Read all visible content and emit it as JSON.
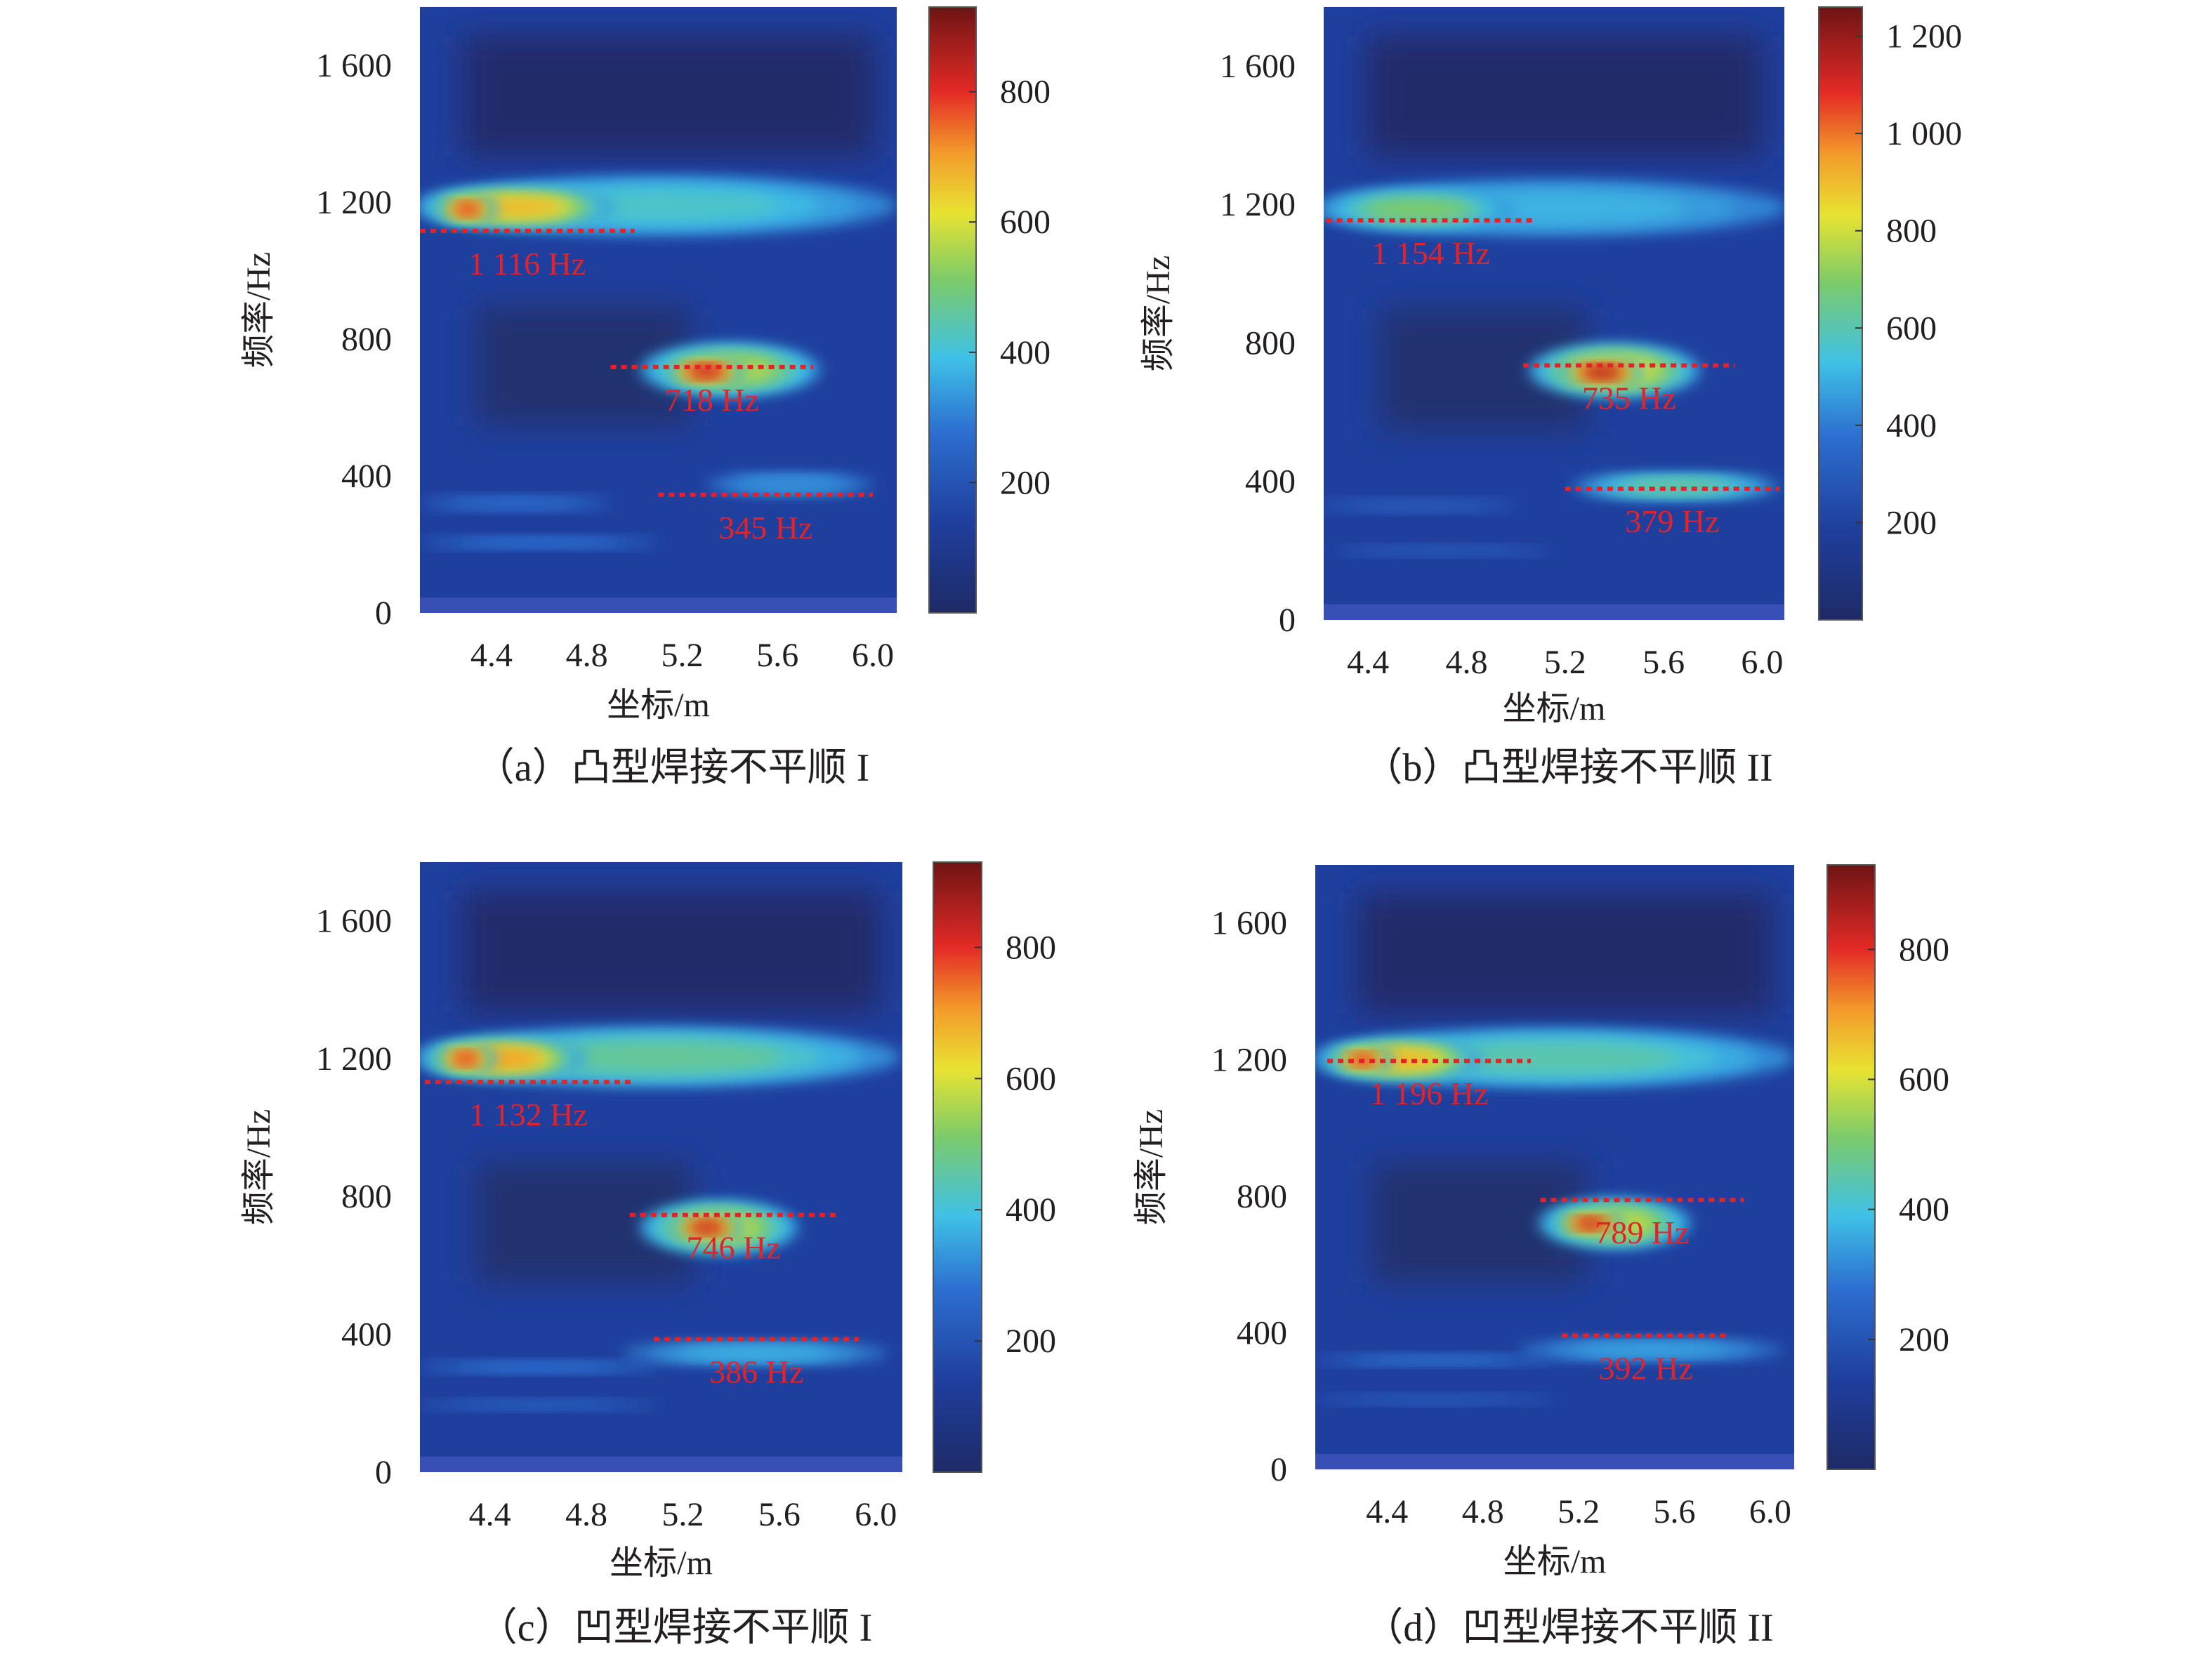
{
  "chart_data": [
    {
      "type": "heatmap",
      "panel": "a",
      "caption": "（a）凸型焊接不平顺 I",
      "xlabel": "坐标/m",
      "ylabel": "频率/Hz",
      "xticks": [
        "4.4",
        "4.8",
        "5.2",
        "5.6",
        "6.0"
      ],
      "xtick_values": [
        4.4,
        4.8,
        5.2,
        5.6,
        6.0
      ],
      "yticks": [
        "0",
        "400",
        "800",
        "1 200",
        "1 600"
      ],
      "ytick_values": [
        0,
        400,
        800,
        1200,
        1600
      ],
      "xlim": [
        4.1,
        6.1
      ],
      "ylim": [
        0,
        1770
      ],
      "colorbar": {
        "ticks": [
          "200",
          "400",
          "600",
          "800"
        ],
        "tick_values": [
          200,
          400,
          600,
          800
        ],
        "range": [
          0,
          930
        ]
      },
      "peaks": [
        {
          "label": "1 116 Hz",
          "freq": 1116,
          "x_range": [
            4.1,
            5.0
          ]
        },
        {
          "label": "718 Hz",
          "freq": 718,
          "x_range": [
            4.9,
            5.75
          ]
        },
        {
          "label": "345 Hz",
          "freq": 345,
          "x_range": [
            5.1,
            6.0
          ]
        }
      ],
      "hotspots": [
        {
          "x": 5.1,
          "y": 1190,
          "sx": 1.0,
          "sy": 85,
          "level": 0.45
        },
        {
          "x": 4.5,
          "y": 1185,
          "sx": 0.42,
          "sy": 55,
          "level": 0.72
        },
        {
          "x": 4.3,
          "y": 1180,
          "sx": 0.12,
          "sy": 35,
          "level": 0.85
        },
        {
          "x": 5.4,
          "y": 710,
          "sx": 0.38,
          "sy": 75,
          "level": 0.6
        },
        {
          "x": 5.3,
          "y": 705,
          "sx": 0.16,
          "sy": 35,
          "level": 0.9
        },
        {
          "x": 5.65,
          "y": 375,
          "sx": 0.35,
          "sy": 30,
          "level": 0.35
        },
        {
          "x": 4.5,
          "y": 320,
          "sx": 0.4,
          "sy": 18,
          "level": 0.28
        },
        {
          "x": 4.6,
          "y": 205,
          "sx": 0.5,
          "sy": 15,
          "level": 0.3
        }
      ]
    },
    {
      "type": "heatmap",
      "panel": "b",
      "caption": "（b）凸型焊接不平顺 II",
      "xlabel": "坐标/m",
      "ylabel": "频率/Hz",
      "xticks": [
        "4.4",
        "4.8",
        "5.2",
        "5.6",
        "6.0"
      ],
      "xtick_values": [
        4.4,
        4.8,
        5.2,
        5.6,
        6.0
      ],
      "yticks": [
        "0",
        "400",
        "800",
        "1 200",
        "1 600"
      ],
      "ytick_values": [
        0,
        400,
        800,
        1200,
        1600
      ],
      "xlim": [
        4.22,
        6.09
      ],
      "ylim": [
        0,
        1770
      ],
      "colorbar": {
        "ticks": [
          "200",
          "400",
          "600",
          "800",
          "1 000",
          "1 200"
        ],
        "tick_values": [
          200,
          400,
          600,
          800,
          1000,
          1200
        ],
        "range": [
          0,
          1260
        ]
      },
      "peaks": [
        {
          "label": "1 154 Hz",
          "freq": 1154,
          "x_range": [
            4.23,
            5.08
          ]
        },
        {
          "label": "735 Hz",
          "freq": 735,
          "x_range": [
            5.03,
            5.89
          ]
        },
        {
          "label": "379 Hz",
          "freq": 379,
          "x_range": [
            5.2,
            6.07
          ]
        }
      ],
      "hotspots": [
        {
          "x": 5.15,
          "y": 1190,
          "sx": 0.95,
          "sy": 80,
          "level": 0.4
        },
        {
          "x": 4.6,
          "y": 1185,
          "sx": 0.4,
          "sy": 55,
          "level": 0.55
        },
        {
          "x": 5.4,
          "y": 720,
          "sx": 0.35,
          "sy": 75,
          "level": 0.65
        },
        {
          "x": 5.35,
          "y": 715,
          "sx": 0.17,
          "sy": 35,
          "level": 0.92
        },
        {
          "x": 5.65,
          "y": 385,
          "sx": 0.42,
          "sy": 35,
          "level": 0.5
        },
        {
          "x": 4.6,
          "y": 330,
          "sx": 0.4,
          "sy": 15,
          "level": 0.22
        },
        {
          "x": 4.7,
          "y": 200,
          "sx": 0.45,
          "sy": 12,
          "level": 0.22
        }
      ]
    },
    {
      "type": "heatmap",
      "panel": "c",
      "caption": "（c）凹型焊接不平顺 I",
      "xlabel": "坐标/m",
      "ylabel": "频率/Hz",
      "xticks": [
        "4.4",
        "4.8",
        "5.2",
        "5.6",
        "6.0"
      ],
      "xtick_values": [
        4.4,
        4.8,
        5.2,
        5.6,
        6.0
      ],
      "yticks": [
        "0",
        "400",
        "800",
        "1 200",
        "1 600"
      ],
      "ytick_values": [
        0,
        400,
        800,
        1200,
        1600
      ],
      "xlim": [
        4.11,
        6.11
      ],
      "ylim": [
        0,
        1770
      ],
      "colorbar": {
        "ticks": [
          "200",
          "400",
          "600",
          "800"
        ],
        "tick_values": [
          200,
          400,
          600,
          800
        ],
        "range": [
          0,
          930
        ]
      },
      "peaks": [
        {
          "label": "1 132 Hz",
          "freq": 1132,
          "x_range": [
            4.13,
            4.99
          ]
        },
        {
          "label": "746 Hz",
          "freq": 746,
          "x_range": [
            4.98,
            5.84
          ]
        },
        {
          "label": "386 Hz",
          "freq": 386,
          "x_range": [
            5.08,
            5.93
          ]
        }
      ],
      "hotspots": [
        {
          "x": 5.1,
          "y": 1205,
          "sx": 1.0,
          "sy": 85,
          "level": 0.5
        },
        {
          "x": 4.45,
          "y": 1200,
          "sx": 0.35,
          "sy": 55,
          "level": 0.75
        },
        {
          "x": 4.3,
          "y": 1200,
          "sx": 0.12,
          "sy": 35,
          "level": 0.85
        },
        {
          "x": 5.35,
          "y": 710,
          "sx": 0.33,
          "sy": 75,
          "level": 0.62
        },
        {
          "x": 5.3,
          "y": 710,
          "sx": 0.15,
          "sy": 33,
          "level": 0.9
        },
        {
          "x": 5.5,
          "y": 345,
          "sx": 0.55,
          "sy": 30,
          "level": 0.4
        },
        {
          "x": 4.6,
          "y": 305,
          "sx": 0.5,
          "sy": 15,
          "level": 0.3
        },
        {
          "x": 4.6,
          "y": 195,
          "sx": 0.5,
          "sy": 12,
          "level": 0.25
        }
      ]
    },
    {
      "type": "heatmap",
      "panel": "d",
      "caption": "（d）凹型焊接不平顺 II",
      "xlabel": "坐标/m",
      "ylabel": "频率/Hz",
      "xticks": [
        "4.4",
        "4.8",
        "5.2",
        "5.6",
        "6.0"
      ],
      "xtick_values": [
        4.4,
        4.8,
        5.2,
        5.6,
        6.0
      ],
      "yticks": [
        "0",
        "400",
        "800",
        "1 200",
        "1 600"
      ],
      "ytick_values": [
        0,
        400,
        800,
        1200,
        1600
      ],
      "xlim": [
        4.1,
        6.1
      ],
      "ylim": [
        0,
        1770
      ],
      "colorbar": {
        "ticks": [
          "200",
          "400",
          "600",
          "800"
        ],
        "tick_values": [
          200,
          400,
          600,
          800
        ],
        "range": [
          0,
          930
        ]
      },
      "peaks": [
        {
          "label": "1 196 Hz",
          "freq": 1196,
          "x_range": [
            4.15,
            5.0
          ]
        },
        {
          "label": "789 Hz",
          "freq": 789,
          "x_range": [
            5.04,
            5.89
          ]
        },
        {
          "label": "392 Hz",
          "freq": 392,
          "x_range": [
            5.13,
            5.83
          ]
        }
      ],
      "hotspots": [
        {
          "x": 5.1,
          "y": 1205,
          "sx": 1.0,
          "sy": 85,
          "level": 0.48
        },
        {
          "x": 4.45,
          "y": 1200,
          "sx": 0.35,
          "sy": 55,
          "level": 0.72
        },
        {
          "x": 4.3,
          "y": 1200,
          "sx": 0.12,
          "sy": 33,
          "level": 0.85
        },
        {
          "x": 5.35,
          "y": 720,
          "sx": 0.32,
          "sy": 70,
          "level": 0.62
        },
        {
          "x": 5.25,
          "y": 720,
          "sx": 0.14,
          "sy": 30,
          "level": 0.9
        },
        {
          "x": 5.5,
          "y": 350,
          "sx": 0.55,
          "sy": 28,
          "level": 0.38
        },
        {
          "x": 4.6,
          "y": 320,
          "sx": 0.5,
          "sy": 14,
          "level": 0.3
        },
        {
          "x": 4.6,
          "y": 205,
          "sx": 0.5,
          "sy": 12,
          "level": 0.22
        }
      ]
    }
  ]
}
